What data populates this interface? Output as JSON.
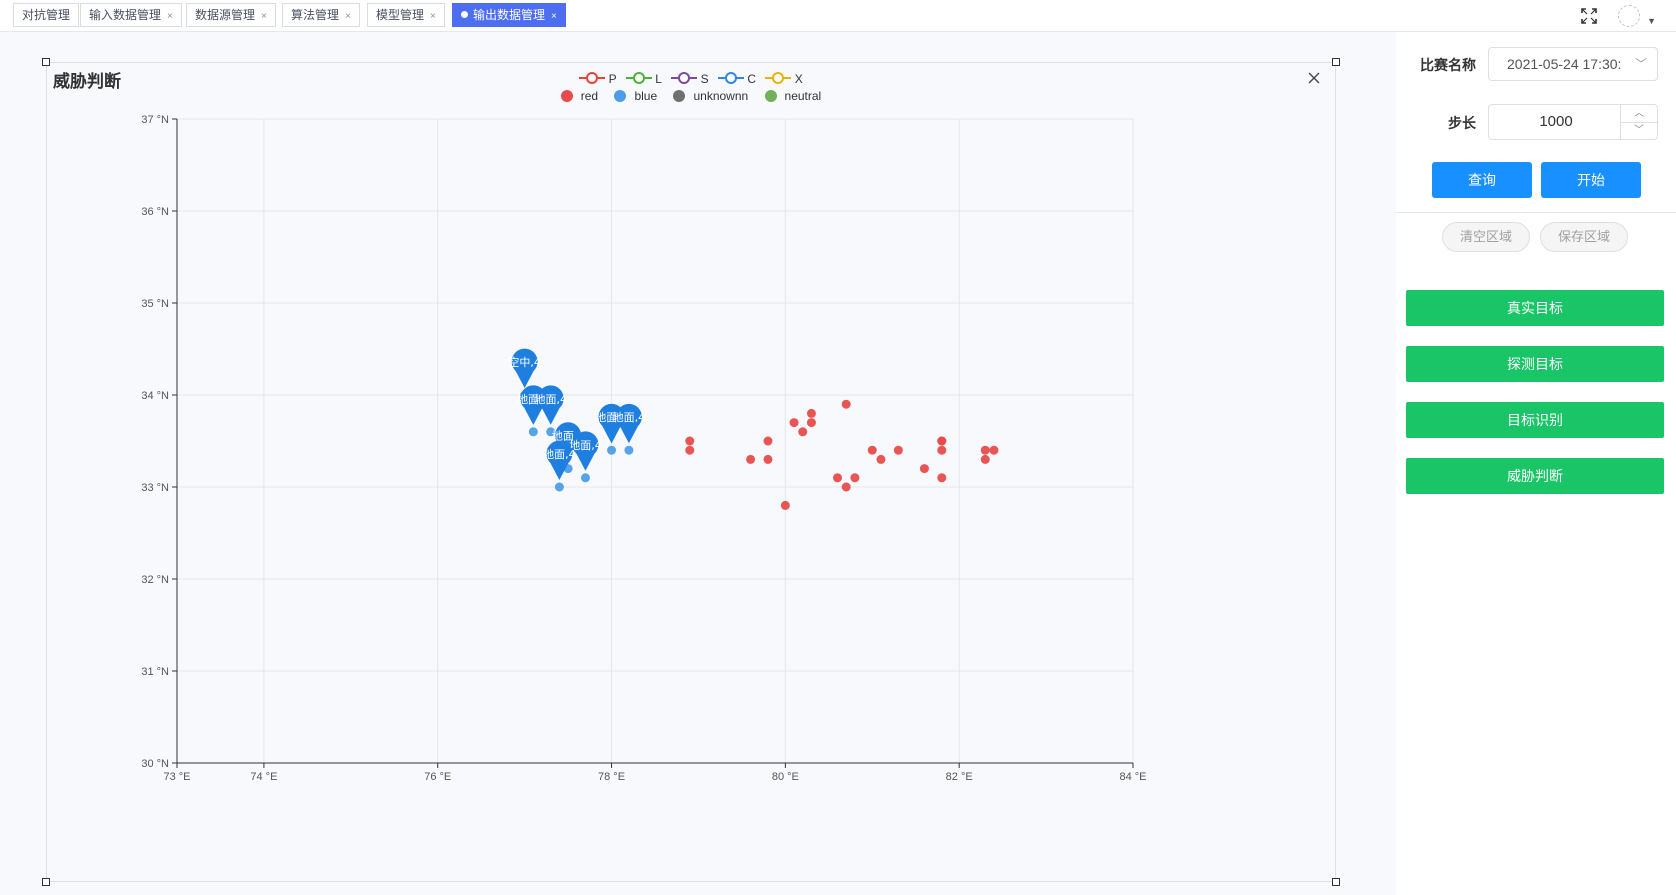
{
  "tabs": [
    {
      "label": "对抗管理",
      "closable": false,
      "active": false
    },
    {
      "label": "输入数据管理",
      "closable": true,
      "active": false
    },
    {
      "label": "数据源管理",
      "closable": true,
      "active": false
    },
    {
      "label": "算法管理",
      "closable": true,
      "active": false
    },
    {
      "label": "模型管理",
      "closable": true,
      "active": false
    },
    {
      "label": "输出数据管理",
      "closable": true,
      "active": true
    }
  ],
  "tab_close_glyph": "×",
  "top_icons": [
    "fullscreen-icon",
    "user-avatar-icon",
    "caret-down-icon"
  ],
  "panel": {
    "title": "威胁判断",
    "close_icon": "close-icon"
  },
  "chart_data": {
    "type": "scatter",
    "title": "威胁判断",
    "legend_lines": [
      {
        "name": "P",
        "color": "#ee4035"
      },
      {
        "name": "L",
        "color": "#4caf3a"
      },
      {
        "name": "S",
        "color": "#7b4aa0"
      },
      {
        "name": "C",
        "color": "#2f86e6"
      },
      {
        "name": "X",
        "color": "#e8b10a"
      }
    ],
    "legend_points": [
      {
        "name": "red",
        "color": "#e84b4b"
      },
      {
        "name": "blue",
        "color": "#4c9ee8"
      },
      {
        "name": "unknownn",
        "color": "#707070"
      },
      {
        "name": "neutral",
        "color": "#73b05a"
      }
    ],
    "xlim": [
      73,
      84
    ],
    "ylim": [
      30,
      37
    ],
    "x_ticks": [
      {
        "value": 73,
        "label": "73 °E"
      },
      {
        "value": 74,
        "label": "74 °E"
      },
      {
        "value": 76,
        "label": "76 °E"
      },
      {
        "value": 78,
        "label": "78 °E"
      },
      {
        "value": 80,
        "label": "80 °E"
      },
      {
        "value": 82,
        "label": "82 °E"
      },
      {
        "value": 84,
        "label": "84 °E"
      }
    ],
    "y_ticks": [
      {
        "value": 30,
        "label": "30 °N"
      },
      {
        "value": 31,
        "label": "31 °N"
      },
      {
        "value": 32,
        "label": "32 °N"
      },
      {
        "value": 33,
        "label": "33 °N"
      },
      {
        "value": 34,
        "label": "34 °N"
      },
      {
        "value": 35,
        "label": "35 °N"
      },
      {
        "value": 36,
        "label": "36 °N"
      },
      {
        "value": 37,
        "label": "37 °N"
      }
    ],
    "grid": true,
    "series": [
      {
        "name": "red",
        "color": "#e84b4b",
        "points": [
          [
            78.9,
            33.5
          ],
          [
            78.9,
            33.4
          ],
          [
            79.6,
            33.3
          ],
          [
            79.8,
            33.5
          ],
          [
            79.8,
            33.3
          ],
          [
            80.0,
            32.8
          ],
          [
            80.1,
            33.7
          ],
          [
            80.2,
            33.6
          ],
          [
            80.3,
            33.8
          ],
          [
            80.3,
            33.7
          ],
          [
            80.6,
            33.1
          ],
          [
            80.7,
            33.9
          ],
          [
            80.7,
            33.0
          ],
          [
            80.8,
            33.1
          ],
          [
            81.0,
            33.4
          ],
          [
            81.1,
            33.3
          ],
          [
            81.3,
            33.4
          ],
          [
            81.6,
            33.2
          ],
          [
            81.8,
            33.5
          ],
          [
            81.8,
            33.5
          ],
          [
            81.8,
            33.4
          ],
          [
            81.8,
            33.1
          ],
          [
            82.3,
            33.4
          ],
          [
            82.3,
            33.3
          ],
          [
            82.4,
            33.4
          ]
        ]
      },
      {
        "name": "blue",
        "color": "#4c9ee8",
        "points": [
          [
            77.0,
            34.0
          ],
          [
            77.1,
            33.6
          ],
          [
            77.3,
            33.6
          ],
          [
            78.0,
            33.4
          ],
          [
            78.2,
            33.4
          ],
          [
            77.4,
            33.0
          ],
          [
            77.7,
            33.1
          ],
          [
            77.5,
            33.2
          ]
        ]
      }
    ],
    "pins": [
      {
        "x": 77.0,
        "y": 34.0,
        "label": "空中,4"
      },
      {
        "x": 77.1,
        "y": 33.6,
        "label": "地面,4"
      },
      {
        "x": 77.1,
        "y": 33.6,
        "label": "地面,4"
      },
      {
        "x": 77.3,
        "y": 33.6,
        "label": "地面,4"
      },
      {
        "x": 78.0,
        "y": 33.4,
        "label": "地面,4"
      },
      {
        "x": 78.0,
        "y": 33.4,
        "label": "地面,4"
      },
      {
        "x": 78.2,
        "y": 33.4,
        "label": "地面,4"
      },
      {
        "x": 77.5,
        "y": 33.2,
        "label": "地面,4"
      },
      {
        "x": 77.7,
        "y": 33.1,
        "label": "地面,4"
      },
      {
        "x": 77.4,
        "y": 33.0,
        "label": "地面,4"
      }
    ],
    "pin_color": "#1f7fe0"
  },
  "sidebar": {
    "match_label": "比赛名称",
    "match_value": "2021-05-24 17:30:",
    "step_label": "步长",
    "step_value": "1000",
    "query_button": "查询",
    "start_button": "开始",
    "clear_area_button": "清空区域",
    "save_area_button": "保存区域",
    "actions": [
      "真实目标",
      "探测目标",
      "目标识别",
      "威胁判断"
    ]
  }
}
